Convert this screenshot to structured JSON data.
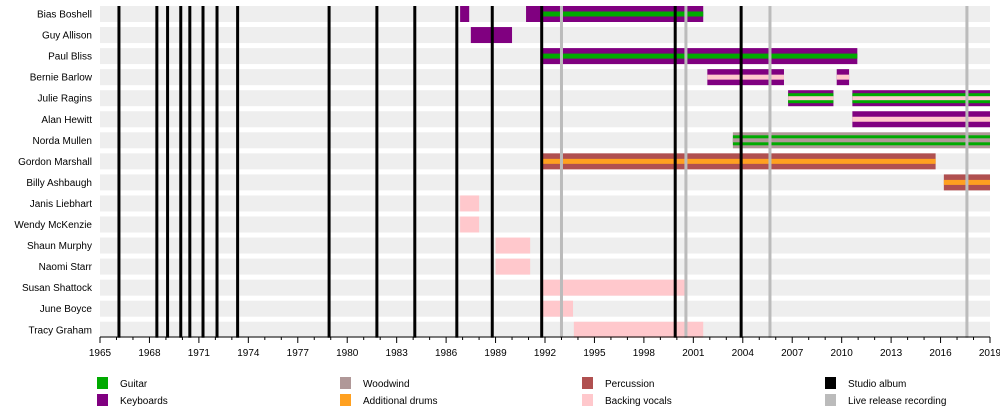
{
  "chart_data": {
    "type": "timeline",
    "xlim": [
      1965,
      2019
    ],
    "tick_labels": [
      "1965",
      "1968",
      "1971",
      "1974",
      "1977",
      "1980",
      "1983",
      "1986",
      "1989",
      "1992",
      "1995",
      "1998",
      "2001",
      "2004",
      "2007",
      "2010",
      "2013",
      "2016",
      "2019"
    ],
    "members": [
      "Bias Boshell",
      "Guy Allison",
      "Paul Bliss",
      "Bernie Barlow",
      "Julie Ragins",
      "Alan Hewitt",
      "Norda Mullen",
      "Gordon Marshall",
      "Billy Ashbaugh",
      "Janis Liebhart",
      "Wendy McKenzie",
      "Shaun Murphy",
      "Naomi Starr",
      "Susan Shattock",
      "June Boyce",
      "Tracy Graham"
    ],
    "roles": {
      "guitar": {
        "label": "Guitar",
        "color": "#00aa00"
      },
      "keyboards": {
        "label": "Keyboards",
        "color": "#800080"
      },
      "woodwind": {
        "label": "Woodwind",
        "color": "#b09898"
      },
      "drums": {
        "label": "Additional drums",
        "color": "#ffa020"
      },
      "percussion": {
        "label": "Percussion",
        "color": "#b05050"
      },
      "vocals": {
        "label": "Backing vocals",
        "color": "#ffc8cc"
      },
      "studio": {
        "label": "Studio album",
        "color": "#000000"
      },
      "live": {
        "label": "Live release recording",
        "color": "#bbbbbb"
      }
    },
    "legend_order": [
      "guitar",
      "keyboards",
      "woodwind",
      "drums",
      "percussion",
      "vocals",
      "studio",
      "live"
    ],
    "bars": [
      {
        "member": 0,
        "start": 1986.85,
        "end": 1987.4,
        "roles": [
          "keyboards"
        ]
      },
      {
        "member": 0,
        "start": 1990.85,
        "end": 1991.8,
        "roles": [
          "keyboards"
        ]
      },
      {
        "member": 0,
        "start": 1991.8,
        "end": 2001.6,
        "roles": [
          "keyboards",
          "guitar"
        ]
      },
      {
        "member": 1,
        "start": 1987.5,
        "end": 1990.0,
        "roles": [
          "keyboards"
        ]
      },
      {
        "member": 2,
        "start": 1991.8,
        "end": 2010.95,
        "roles": [
          "keyboards",
          "guitar"
        ]
      },
      {
        "member": 3,
        "start": 2001.85,
        "end": 2006.5,
        "roles": [
          "keyboards",
          "vocals"
        ]
      },
      {
        "member": 3,
        "start": 2009.7,
        "end": 2010.45,
        "roles": [
          "keyboards",
          "vocals"
        ]
      },
      {
        "member": 4,
        "start": 2006.75,
        "end": 2009.5,
        "roles": [
          "keyboards",
          "guitar",
          "vocals"
        ]
      },
      {
        "member": 4,
        "start": 2010.65,
        "end": 2019,
        "roles": [
          "keyboards",
          "guitar",
          "vocals"
        ]
      },
      {
        "member": 5,
        "start": 2010.65,
        "end": 2019,
        "roles": [
          "keyboards",
          "vocals"
        ]
      },
      {
        "member": 6,
        "start": 2003.4,
        "end": 2019,
        "roles": [
          "woodwind",
          "guitar",
          "woodwind"
        ]
      },
      {
        "member": 7,
        "start": 1991.8,
        "end": 2015.7,
        "roles": [
          "percussion",
          "drums"
        ]
      },
      {
        "member": 8,
        "start": 2016.2,
        "end": 2019,
        "roles": [
          "percussion",
          "drums"
        ]
      },
      {
        "member": 9,
        "start": 1986.85,
        "end": 1988.0,
        "roles": [
          "vocals"
        ]
      },
      {
        "member": 10,
        "start": 1986.85,
        "end": 1988.0,
        "roles": [
          "vocals"
        ]
      },
      {
        "member": 11,
        "start": 1989.0,
        "end": 1991.1,
        "roles": [
          "vocals"
        ]
      },
      {
        "member": 12,
        "start": 1989.0,
        "end": 1991.1,
        "roles": [
          "vocals"
        ]
      },
      {
        "member": 13,
        "start": 1991.8,
        "end": 2000.6,
        "roles": [
          "vocals"
        ]
      },
      {
        "member": 14,
        "start": 1991.8,
        "end": 1993.7,
        "roles": [
          "vocals"
        ]
      },
      {
        "member": 15,
        "start": 1993.75,
        "end": 2001.6,
        "roles": [
          "vocals"
        ]
      }
    ],
    "studio_albums": [
      1966.15,
      1968.45,
      1969.1,
      1969.9,
      1970.45,
      1971.25,
      1972.1,
      1973.35,
      1978.9,
      1981.8,
      1984.1,
      1986.65,
      1988.8,
      1991.8,
      1999.9,
      2003.9
    ],
    "live_recordings": [
      1993.0,
      2000.55,
      2005.65,
      2017.6
    ],
    "grid": false,
    "legend_placement": "bottom"
  }
}
